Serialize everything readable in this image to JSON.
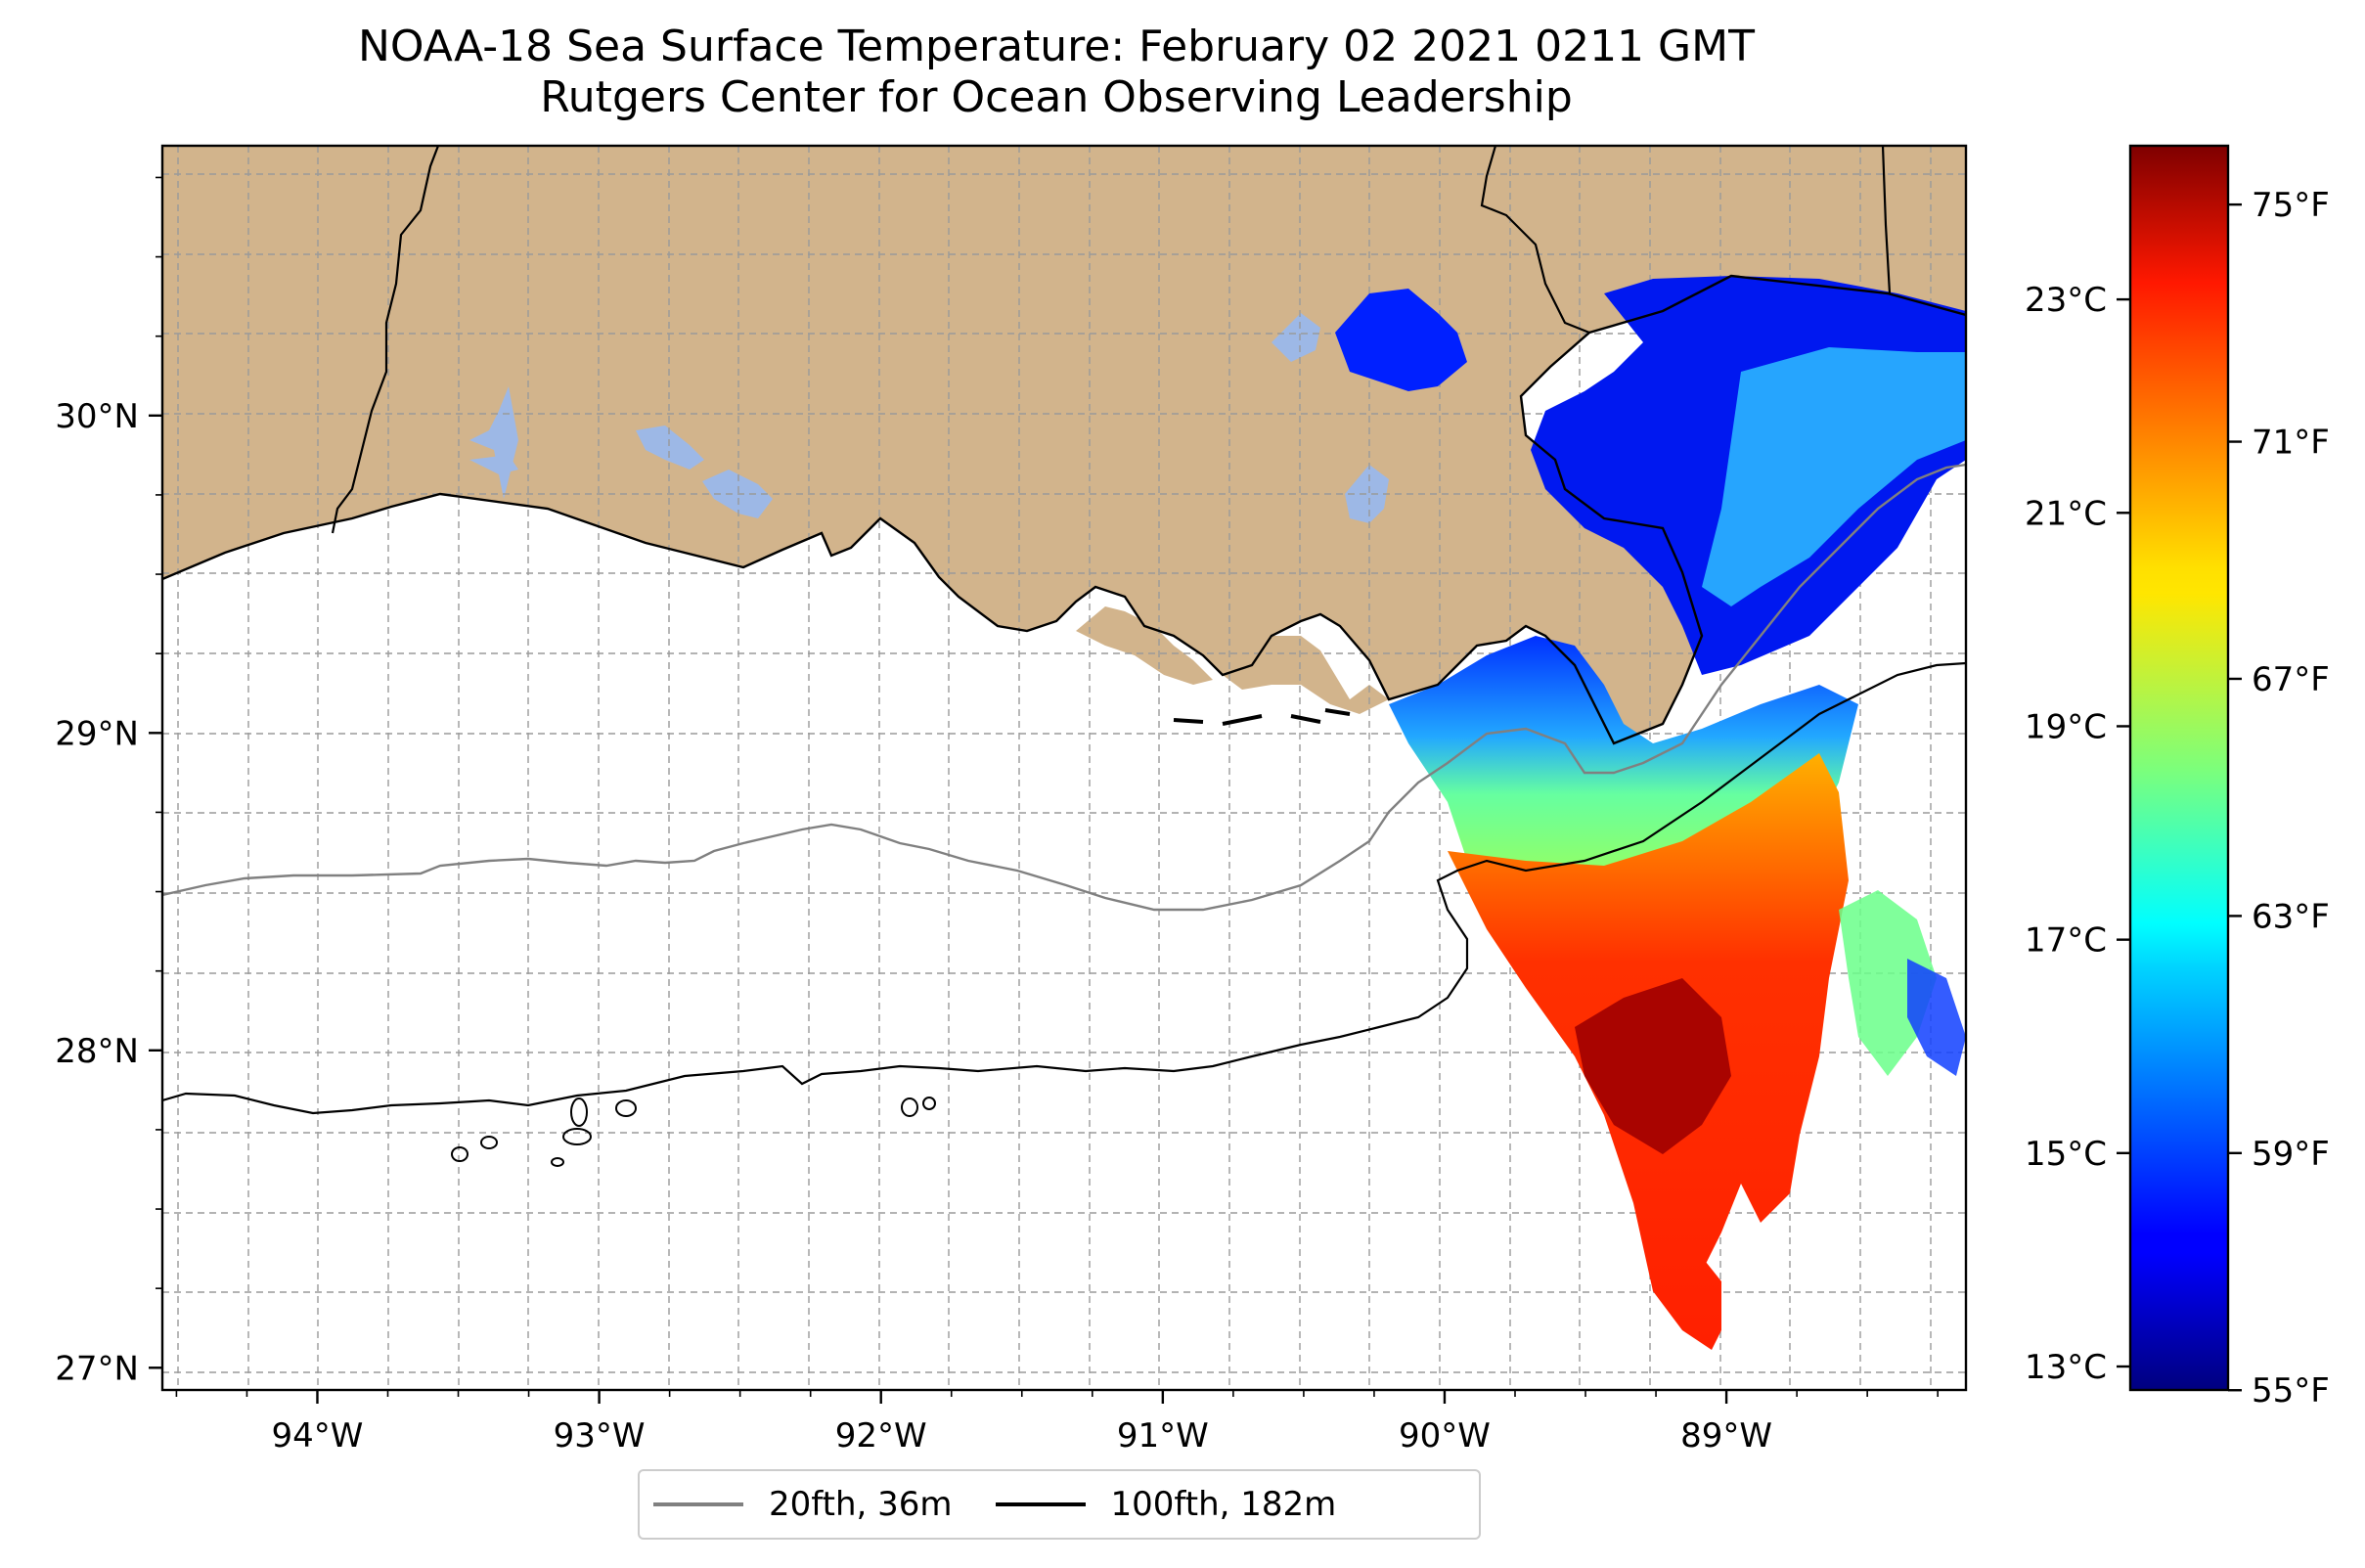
{
  "title": {
    "line1": "NOAA-18 Sea Surface Temperature: February 02 2021 0211 GMT",
    "line2": "Rutgers Center for Ocean Observing Leadership"
  },
  "map": {
    "lon_range": [
      -94.55,
      -88.15
    ],
    "lat_range": [
      26.93,
      30.85
    ],
    "lon_ticks": [
      {
        "value": -94,
        "label": "94°W"
      },
      {
        "value": -93,
        "label": "93°W"
      },
      {
        "value": -92,
        "label": "92°W"
      },
      {
        "value": -91,
        "label": "91°W"
      },
      {
        "value": -90,
        "label": "90°W"
      },
      {
        "value": -89,
        "label": "89°W"
      }
    ],
    "lat_ticks": [
      {
        "value": 30,
        "label": "30°N"
      },
      {
        "value": 29,
        "label": "29°N"
      },
      {
        "value": 28,
        "label": "28°N"
      },
      {
        "value": 27,
        "label": "27°N"
      }
    ],
    "land_color": "#d2b48c",
    "lake_color": "#9db8e6",
    "gridlines": true
  },
  "legend": {
    "entries": [
      {
        "label": "20fth, 36m",
        "color": "#808080"
      },
      {
        "label": "100fth, 182m",
        "color": "#000000"
      }
    ],
    "placement": "bottom-center"
  },
  "colorbar": {
    "colormap": "jet",
    "celsius_range": [
      12.78,
      24.44
    ],
    "celsius_ticks": [
      {
        "value": 13,
        "label": "13°C"
      },
      {
        "value": 15,
        "label": "15°C"
      },
      {
        "value": 17,
        "label": "17°C"
      },
      {
        "value": 19,
        "label": "19°C"
      },
      {
        "value": 21,
        "label": "21°C"
      },
      {
        "value": 23,
        "label": "23°C"
      }
    ],
    "fahrenheit_ticks": [
      {
        "value": 55,
        "label": "55°F"
      },
      {
        "value": 59,
        "label": "59°F"
      },
      {
        "value": 63,
        "label": "63°F"
      },
      {
        "value": 67,
        "label": "67°F"
      },
      {
        "value": 71,
        "label": "71°F"
      },
      {
        "value": 75,
        "label": "75°F"
      }
    ]
  }
}
